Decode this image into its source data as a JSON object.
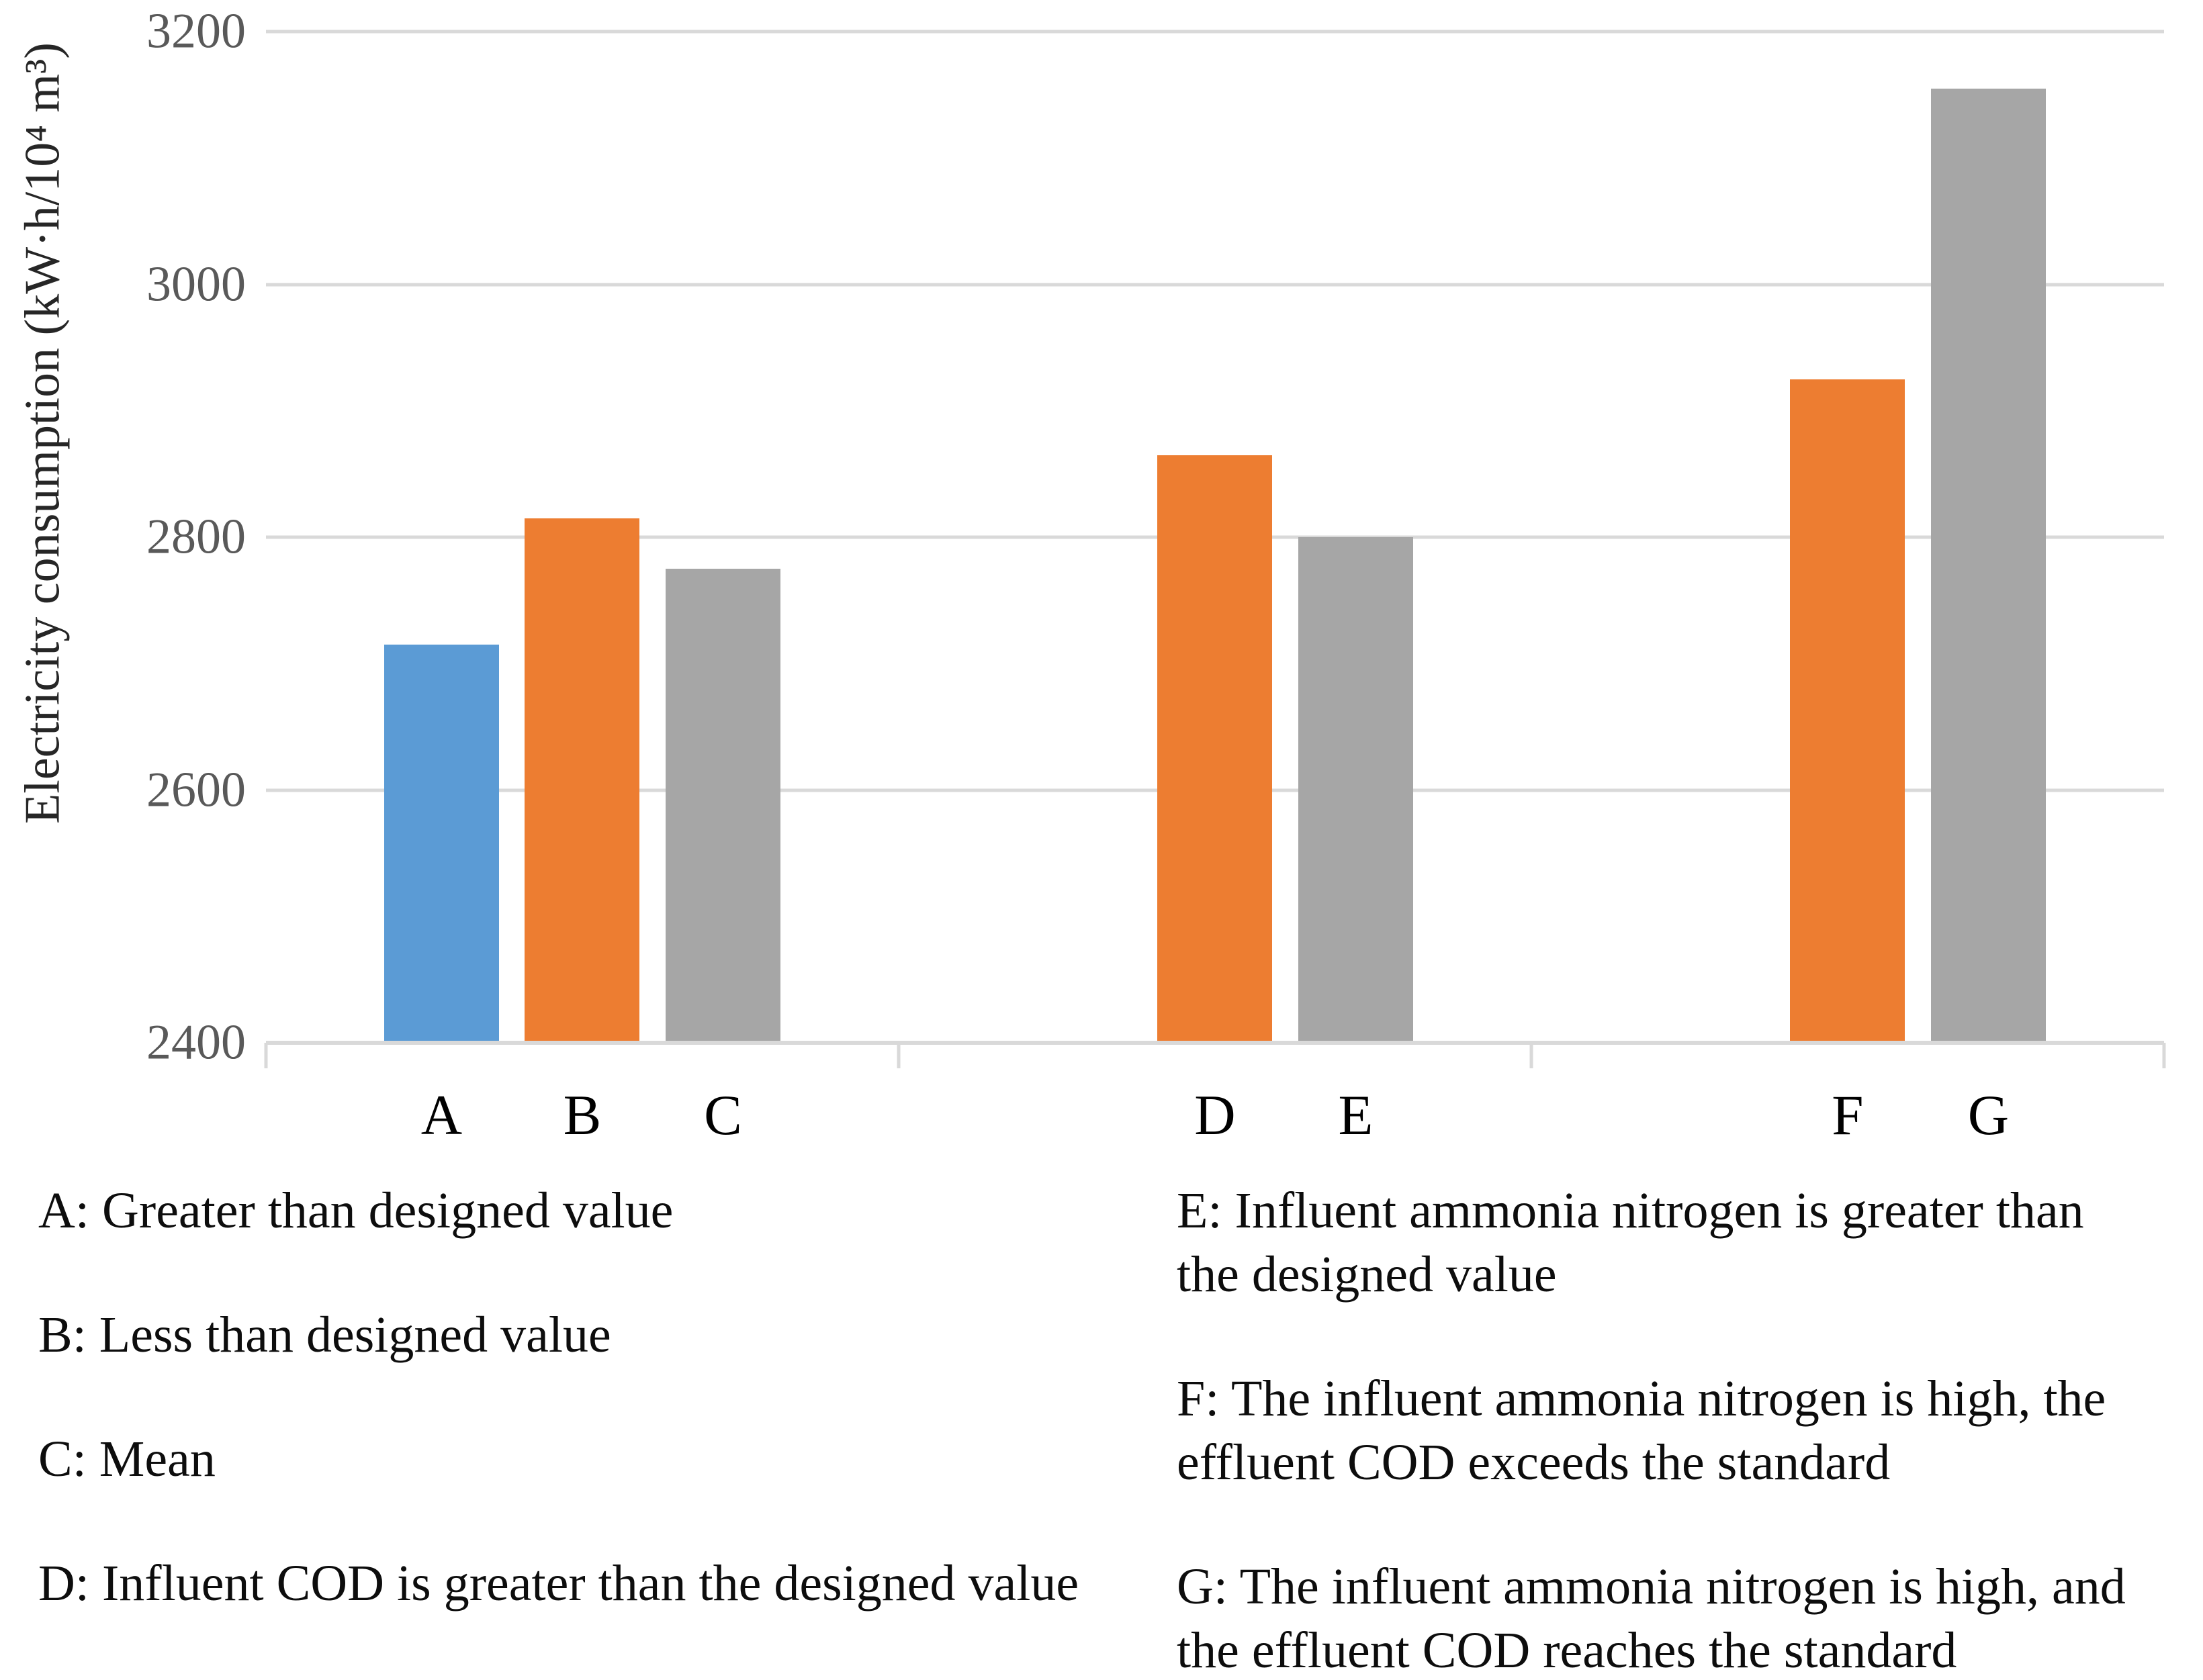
{
  "chart_data": {
    "type": "bar",
    "title": "",
    "xlabel": "",
    "ylabel": "Electricity consumption (kW·h/10⁴ m³)",
    "ylim": [
      2400,
      3200
    ],
    "yticks": [
      2400,
      2600,
      2800,
      3000,
      3200
    ],
    "grid": true,
    "legend_position": "none",
    "categories": [
      "A",
      "B",
      "C",
      "D",
      "E",
      "F",
      "G"
    ],
    "values": [
      2715,
      2815,
      2775,
      2865,
      2800,
      2925,
      3155
    ],
    "bars": [
      {
        "label": "A",
        "value": 2715,
        "group": 0,
        "slot": 0,
        "color": "#5B9BD5"
      },
      {
        "label": "B",
        "value": 2815,
        "group": 0,
        "slot": 1,
        "color": "#ED7D31"
      },
      {
        "label": "C",
        "value": 2775,
        "group": 0,
        "slot": 2,
        "color": "#A6A6A6"
      },
      {
        "label": "D",
        "value": 2865,
        "group": 1,
        "slot": 1,
        "color": "#ED7D31"
      },
      {
        "label": "E",
        "value": 2800,
        "group": 1,
        "slot": 2,
        "color": "#A6A6A6"
      },
      {
        "label": "F",
        "value": 2925,
        "group": 2,
        "slot": 1,
        "color": "#ED7D31"
      },
      {
        "label": "G",
        "value": 3155,
        "group": 2,
        "slot": 2,
        "color": "#A6A6A6"
      }
    ],
    "colors": {
      "blue": "#5B9BD5",
      "orange": "#ED7D31",
      "gray": "#A6A6A6",
      "gridline": "#D9D9D9",
      "axis_line": "#D9D9D9",
      "tick_text": "#595959",
      "category_text": "#000000",
      "legend_text": "#0D0D0D"
    }
  },
  "legend": {
    "left": [
      "A: Greater than designed value",
      "B: Less than designed value",
      "C: Mean",
      "D: Influent COD is greater than the designed value"
    ],
    "right": [
      "E: Influent ammonia nitrogen is greater than the designed value",
      "F: The influent ammonia nitrogen is high, the effluent COD exceeds the standard",
      "G: The influent ammonia nitrogen is high, and the effluent COD reaches the standard"
    ]
  }
}
